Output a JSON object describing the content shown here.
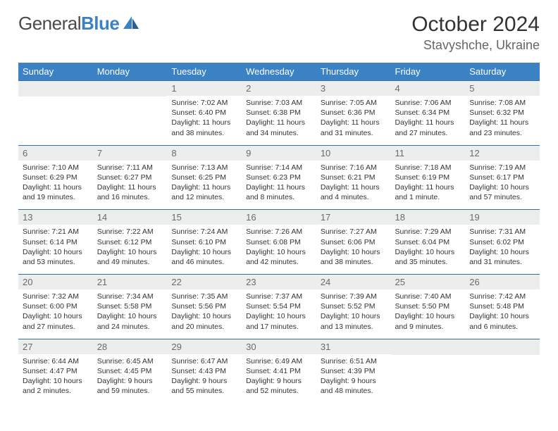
{
  "brand": {
    "part1": "General",
    "part2": "Blue",
    "logo_color_1": "#3b82c4",
    "logo_color_2": "#2a5f8f"
  },
  "header": {
    "month_title": "October 2024",
    "location": "Stavyshche, Ukraine"
  },
  "styling": {
    "header_bg": "#3b82c4",
    "header_text": "#ffffff",
    "daynum_bg": "#eceded",
    "daynum_text": "#6a6a6a",
    "cell_border": "#3b6fa0",
    "body_text": "#333333",
    "body_fontsize": 10.5
  },
  "weekdays": [
    "Sunday",
    "Monday",
    "Tuesday",
    "Wednesday",
    "Thursday",
    "Friday",
    "Saturday"
  ],
  "leading_blanks": 2,
  "days": [
    {
      "n": "1",
      "sunrise": "7:02 AM",
      "sunset": "6:40 PM",
      "daylight": "11 hours and 38 minutes."
    },
    {
      "n": "2",
      "sunrise": "7:03 AM",
      "sunset": "6:38 PM",
      "daylight": "11 hours and 34 minutes."
    },
    {
      "n": "3",
      "sunrise": "7:05 AM",
      "sunset": "6:36 PM",
      "daylight": "11 hours and 31 minutes."
    },
    {
      "n": "4",
      "sunrise": "7:06 AM",
      "sunset": "6:34 PM",
      "daylight": "11 hours and 27 minutes."
    },
    {
      "n": "5",
      "sunrise": "7:08 AM",
      "sunset": "6:32 PM",
      "daylight": "11 hours and 23 minutes."
    },
    {
      "n": "6",
      "sunrise": "7:10 AM",
      "sunset": "6:29 PM",
      "daylight": "11 hours and 19 minutes."
    },
    {
      "n": "7",
      "sunrise": "7:11 AM",
      "sunset": "6:27 PM",
      "daylight": "11 hours and 16 minutes."
    },
    {
      "n": "8",
      "sunrise": "7:13 AM",
      "sunset": "6:25 PM",
      "daylight": "11 hours and 12 minutes."
    },
    {
      "n": "9",
      "sunrise": "7:14 AM",
      "sunset": "6:23 PM",
      "daylight": "11 hours and 8 minutes."
    },
    {
      "n": "10",
      "sunrise": "7:16 AM",
      "sunset": "6:21 PM",
      "daylight": "11 hours and 4 minutes."
    },
    {
      "n": "11",
      "sunrise": "7:18 AM",
      "sunset": "6:19 PM",
      "daylight": "11 hours and 1 minute."
    },
    {
      "n": "12",
      "sunrise": "7:19 AM",
      "sunset": "6:17 PM",
      "daylight": "10 hours and 57 minutes."
    },
    {
      "n": "13",
      "sunrise": "7:21 AM",
      "sunset": "6:14 PM",
      "daylight": "10 hours and 53 minutes."
    },
    {
      "n": "14",
      "sunrise": "7:22 AM",
      "sunset": "6:12 PM",
      "daylight": "10 hours and 49 minutes."
    },
    {
      "n": "15",
      "sunrise": "7:24 AM",
      "sunset": "6:10 PM",
      "daylight": "10 hours and 46 minutes."
    },
    {
      "n": "16",
      "sunrise": "7:26 AM",
      "sunset": "6:08 PM",
      "daylight": "10 hours and 42 minutes."
    },
    {
      "n": "17",
      "sunrise": "7:27 AM",
      "sunset": "6:06 PM",
      "daylight": "10 hours and 38 minutes."
    },
    {
      "n": "18",
      "sunrise": "7:29 AM",
      "sunset": "6:04 PM",
      "daylight": "10 hours and 35 minutes."
    },
    {
      "n": "19",
      "sunrise": "7:31 AM",
      "sunset": "6:02 PM",
      "daylight": "10 hours and 31 minutes."
    },
    {
      "n": "20",
      "sunrise": "7:32 AM",
      "sunset": "6:00 PM",
      "daylight": "10 hours and 27 minutes."
    },
    {
      "n": "21",
      "sunrise": "7:34 AM",
      "sunset": "5:58 PM",
      "daylight": "10 hours and 24 minutes."
    },
    {
      "n": "22",
      "sunrise": "7:35 AM",
      "sunset": "5:56 PM",
      "daylight": "10 hours and 20 minutes."
    },
    {
      "n": "23",
      "sunrise": "7:37 AM",
      "sunset": "5:54 PM",
      "daylight": "10 hours and 17 minutes."
    },
    {
      "n": "24",
      "sunrise": "7:39 AM",
      "sunset": "5:52 PM",
      "daylight": "10 hours and 13 minutes."
    },
    {
      "n": "25",
      "sunrise": "7:40 AM",
      "sunset": "5:50 PM",
      "daylight": "10 hours and 9 minutes."
    },
    {
      "n": "26",
      "sunrise": "7:42 AM",
      "sunset": "5:48 PM",
      "daylight": "10 hours and 6 minutes."
    },
    {
      "n": "27",
      "sunrise": "6:44 AM",
      "sunset": "4:47 PM",
      "daylight": "10 hours and 2 minutes."
    },
    {
      "n": "28",
      "sunrise": "6:45 AM",
      "sunset": "4:45 PM",
      "daylight": "9 hours and 59 minutes."
    },
    {
      "n": "29",
      "sunrise": "6:47 AM",
      "sunset": "4:43 PM",
      "daylight": "9 hours and 55 minutes."
    },
    {
      "n": "30",
      "sunrise": "6:49 AM",
      "sunset": "4:41 PM",
      "daylight": "9 hours and 52 minutes."
    },
    {
      "n": "31",
      "sunrise": "6:51 AM",
      "sunset": "4:39 PM",
      "daylight": "9 hours and 48 minutes."
    }
  ],
  "labels": {
    "sunrise_prefix": "Sunrise: ",
    "sunset_prefix": "Sunset: ",
    "daylight_prefix": "Daylight: "
  }
}
